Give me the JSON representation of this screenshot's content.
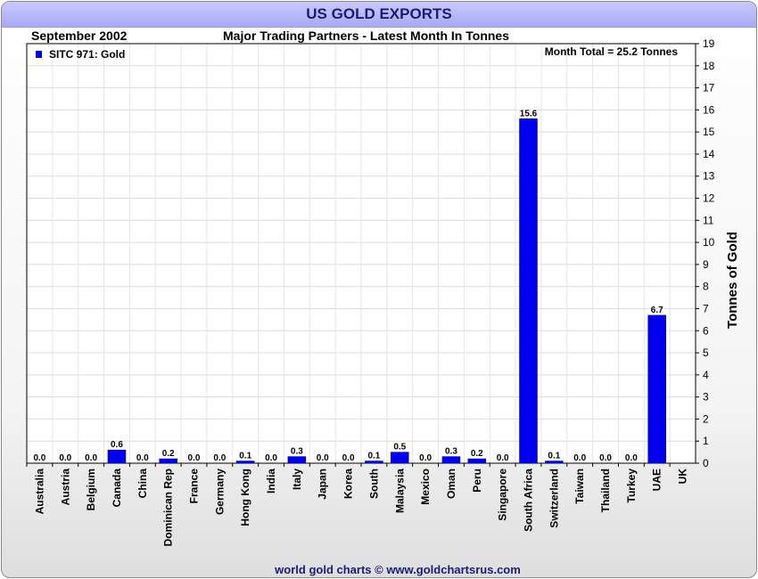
{
  "header": {
    "title": "US GOLD EXPORTS",
    "date": "September 2002",
    "subtitle": "Major Trading Partners - Latest Month In Tonnes"
  },
  "footer": {
    "credit": "world gold charts © www.goldchartsrus.com"
  },
  "colors": {
    "bar": "#0000ee",
    "title_bar": "#b4b4f8",
    "title_text": "#1a1a7a"
  },
  "chart_data": {
    "type": "bar",
    "title": "US GOLD EXPORTS",
    "subtitle": "Major Trading Partners - Latest Month In Tonnes",
    "ylabel": "Tonnes of Gold",
    "xlabel": "",
    "ylim": [
      0,
      19
    ],
    "yticks": [
      0,
      1,
      2,
      3,
      4,
      5,
      6,
      7,
      8,
      9,
      10,
      11,
      12,
      13,
      14,
      15,
      16,
      17,
      18,
      19
    ],
    "grid": true,
    "legend": {
      "position": "top-left",
      "entries": [
        "SITC 971: Gold"
      ]
    },
    "annotation": "Month Total = 25.2 Tonnes",
    "categories": [
      "Australia",
      "Austria",
      "Belgium",
      "Canada",
      "China",
      "Dominican Rep",
      "France",
      "Germany",
      "Hong Kong",
      "India",
      "Italy",
      "Japan",
      "Korea",
      "South",
      "Malaysia",
      "Mexico",
      "Oman",
      "Peru",
      "Singapore",
      "South Africa",
      "Switzerland",
      "Taiwan",
      "Thailand",
      "Turkey",
      "UAE",
      "UK"
    ],
    "values": [
      0.0,
      0.0,
      0.0,
      0.6,
      0.0,
      0.2,
      0.0,
      0.0,
      0.1,
      0.0,
      0.3,
      0.0,
      0.0,
      0.1,
      0.5,
      0.0,
      0.3,
      0.2,
      0.0,
      15.6,
      0.1,
      0.0,
      0.0,
      0.0,
      6.7,
      null
    ],
    "data_labels": [
      "0.0",
      "0.0",
      "0.0",
      "0.6",
      "0.0",
      "0.2",
      "0.0",
      "0.0",
      "0.1",
      "0.0",
      "0.3",
      "0.0",
      "0.0",
      "0.1",
      "0.5",
      "0.0",
      "0.3",
      "0.2",
      "0.0",
      "15.6",
      "0.1",
      "0.0",
      "0.0",
      "0.0",
      "6.7",
      ""
    ]
  }
}
